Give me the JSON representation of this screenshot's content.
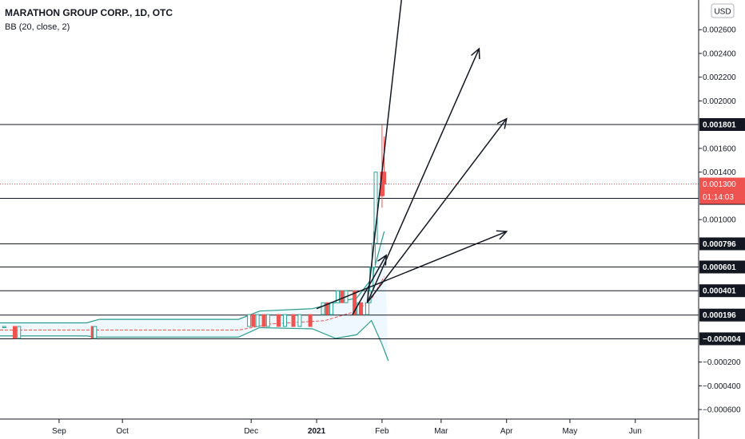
{
  "chart_data": {
    "type": "candlestick",
    "title": "MARATHON GROUP CORP., 1D, OTC",
    "indicator": "BB (20, close, 2)",
    "currency": "USD",
    "y_ticks": [
      "0.002600",
      "0.002400",
      "0.002200",
      "0.002000",
      "0.001600",
      "0.001400",
      "0.001000",
      "−0.000200",
      "−0.000400",
      "−0.000600"
    ],
    "x_ticks": [
      {
        "label": "Sep",
        "date": "2020-09-01"
      },
      {
        "label": "Oct",
        "date": "2020-10-01"
      },
      {
        "label": "Dec",
        "date": "2020-12-01"
      },
      {
        "label": "2021",
        "date": "2021-01-01",
        "bold": true
      },
      {
        "label": "Feb",
        "date": "2021-02-01"
      },
      {
        "label": "Mar",
        "date": "2021-03-01"
      },
      {
        "label": "Apr",
        "date": "2021-04-01"
      },
      {
        "label": "May",
        "date": "2021-05-01"
      },
      {
        "label": "Jun",
        "date": "2021-06-01"
      }
    ],
    "horizontal_levels": [
      {
        "label": "0.001801",
        "value": 0.001801
      },
      {
        "label": "0.001179",
        "value": 0.001179
      },
      {
        "label": "0.000796",
        "value": 0.000796
      },
      {
        "label": "0.000601",
        "value": 0.000601
      },
      {
        "label": "0.000401",
        "value": 0.000401
      },
      {
        "label": "0.000196",
        "value": 0.000196
      },
      {
        "label": "−0.000004",
        "value": -4e-06
      }
    ],
    "current_price": {
      "label": "0.001300",
      "value": 0.0013,
      "countdown": "01:14:03",
      "color": "#ef5350"
    },
    "y_range": [
      -0.00068,
      0.00285
    ],
    "x_range": [
      "2020-08-04",
      "2021-07-01"
    ],
    "candles": [
      {
        "date": "2020-08-06",
        "o": 0.0001,
        "h": 0.0001,
        "l": 0.0001,
        "c": 0.0001
      },
      {
        "date": "2020-08-11",
        "o": 0.0001,
        "h": 0.0001,
        "l": 0.0,
        "c": 0.0
      },
      {
        "date": "2020-08-13",
        "o": 0.0,
        "h": 0.0001,
        "l": 0.0,
        "c": 0.0001
      },
      {
        "date": "2020-09-17",
        "o": 0.0001,
        "h": 0.0001,
        "l": 0.0,
        "c": 0.0
      },
      {
        "date": "2020-09-18",
        "o": 0.0,
        "h": 0.0001,
        "l": 0.0,
        "c": 0.0001
      },
      {
        "date": "2020-11-30",
        "o": 0.0001,
        "h": 0.0002,
        "l": 0.0001,
        "c": 0.0002
      },
      {
        "date": "2020-12-02",
        "o": 0.0002,
        "h": 0.0002,
        "l": 0.0001,
        "c": 0.0001
      },
      {
        "date": "2020-12-04",
        "o": 0.0001,
        "h": 0.0002,
        "l": 0.0001,
        "c": 0.0002
      },
      {
        "date": "2020-12-07",
        "o": 0.0002,
        "h": 0.0002,
        "l": 0.0001,
        "c": 0.0001
      },
      {
        "date": "2020-12-09",
        "o": 0.0001,
        "h": 0.0002,
        "l": 0.0001,
        "c": 0.0002
      },
      {
        "date": "2020-12-14",
        "o": 0.0002,
        "h": 0.0002,
        "l": 0.0001,
        "c": 0.0001
      },
      {
        "date": "2020-12-17",
        "o": 0.0001,
        "h": 0.0002,
        "l": 0.0001,
        "c": 0.0002
      },
      {
        "date": "2020-12-21",
        "o": 0.0002,
        "h": 0.0002,
        "l": 0.0001,
        "c": 0.0001
      },
      {
        "date": "2020-12-24",
        "o": 0.0001,
        "h": 0.0002,
        "l": 0.0001,
        "c": 0.0002
      },
      {
        "date": "2020-12-29",
        "o": 0.0002,
        "h": 0.0002,
        "l": 0.0001,
        "c": 0.0001
      },
      {
        "date": "2021-01-04",
        "o": 0.0002,
        "h": 0.0003,
        "l": 0.0002,
        "c": 0.0003
      },
      {
        "date": "2021-01-06",
        "o": 0.0003,
        "h": 0.0003,
        "l": 0.0002,
        "c": 0.0002
      },
      {
        "date": "2021-01-08",
        "o": 0.0002,
        "h": 0.0003,
        "l": 0.0002,
        "c": 0.0003
      },
      {
        "date": "2021-01-11",
        "o": 0.0003,
        "h": 0.0004,
        "l": 0.0003,
        "c": 0.0004
      },
      {
        "date": "2021-01-13",
        "o": 0.0004,
        "h": 0.0004,
        "l": 0.0003,
        "c": 0.0003
      },
      {
        "date": "2021-01-15",
        "o": 0.0003,
        "h": 0.0004,
        "l": 0.0003,
        "c": 0.0004
      },
      {
        "date": "2021-01-19",
        "o": 0.0004,
        "h": 0.0004,
        "l": 0.0002,
        "c": 0.0002
      },
      {
        "date": "2021-01-21",
        "o": 0.0002,
        "h": 0.0003,
        "l": 0.0002,
        "c": 0.0003
      },
      {
        "date": "2021-01-22",
        "o": 0.0003,
        "h": 0.0003,
        "l": 0.0002,
        "c": 0.0002
      },
      {
        "date": "2021-01-25",
        "o": 0.0002,
        "h": 0.0003,
        "l": 0.0002,
        "c": 0.0003
      },
      {
        "date": "2021-01-26",
        "o": 0.0003,
        "h": 0.0004,
        "l": 0.0003,
        "c": 0.0004
      },
      {
        "date": "2021-01-27",
        "o": 0.0004,
        "h": 0.0006,
        "l": 0.0004,
        "c": 0.0006
      },
      {
        "date": "2021-01-28",
        "o": 0.0006,
        "h": 0.0009,
        "l": 0.0005,
        "c": 0.0008
      },
      {
        "date": "2021-01-29",
        "o": 0.0008,
        "h": 0.0014,
        "l": 0.0008,
        "c": 0.0014
      },
      {
        "date": "2021-02-01",
        "o": 0.0014,
        "h": 0.0018,
        "l": 0.0011,
        "c": 0.0012
      },
      {
        "date": "2021-02-02",
        "o": 0.0014,
        "h": 0.0017,
        "l": 0.0012,
        "c": 0.0013
      }
    ],
    "bollinger": {
      "color": "#2a9d8f",
      "upper": [
        [
          "2020-08-04",
          0.00013
        ],
        [
          "2020-09-14",
          0.00013
        ],
        [
          "2020-09-20",
          0.00016
        ],
        [
          "2020-10-20",
          0.00016
        ],
        [
          "2020-11-25",
          0.00016
        ],
        [
          "2020-12-05",
          0.00023
        ],
        [
          "2020-12-30",
          0.00025
        ],
        [
          "2021-01-10",
          0.0003
        ],
        [
          "2021-01-20",
          0.00034
        ],
        [
          "2021-01-27",
          0.0005
        ],
        [
          "2021-02-02",
          0.0009
        ]
      ],
      "basis": [
        [
          "2020-08-04",
          7e-05
        ],
        [
          "2020-09-14",
          7e-05
        ],
        [
          "2020-11-25",
          7e-05
        ],
        [
          "2020-12-10",
          0.00012
        ],
        [
          "2021-01-05",
          0.00015
        ],
        [
          "2021-01-20",
          0.00023
        ],
        [
          "2021-01-27",
          0.00033
        ],
        [
          "2021-02-02",
          0.00052
        ]
      ],
      "lower": [
        [
          "2020-08-04",
          2e-05
        ],
        [
          "2020-09-14",
          2e-05
        ],
        [
          "2020-09-20",
          1e-05
        ],
        [
          "2020-10-20",
          1e-05
        ],
        [
          "2020-11-25",
          1e-05
        ],
        [
          "2020-12-05",
          9e-05
        ],
        [
          "2020-12-30",
          8e-05
        ],
        [
          "2021-01-10",
          0.0
        ],
        [
          "2021-01-20",
          3e-05
        ],
        [
          "2021-01-27",
          0.00015
        ],
        [
          "2021-02-01",
          -5e-05
        ],
        [
          "2021-02-04",
          -0.00019
        ]
      ]
    },
    "trend_arrows": [
      {
        "from": [
          "2021-01-25",
          0.0003
        ],
        "to": [
          "2021-02-14",
          0.00345
        ]
      },
      {
        "from": [
          "2021-01-25",
          0.0003
        ],
        "to": [
          "2021-03-19",
          0.00244
        ]
      },
      {
        "from": [
          "2021-01-25",
          0.0003
        ],
        "to": [
          "2021-04-01",
          0.00185
        ]
      },
      {
        "from": [
          "2021-01-01",
          0.00025
        ],
        "to": [
          "2021-04-01",
          0.0009
        ]
      },
      {
        "from": [
          "2021-01-18",
          0.0002
        ],
        "to": [
          "2021-02-03",
          0.0007
        ]
      }
    ]
  }
}
